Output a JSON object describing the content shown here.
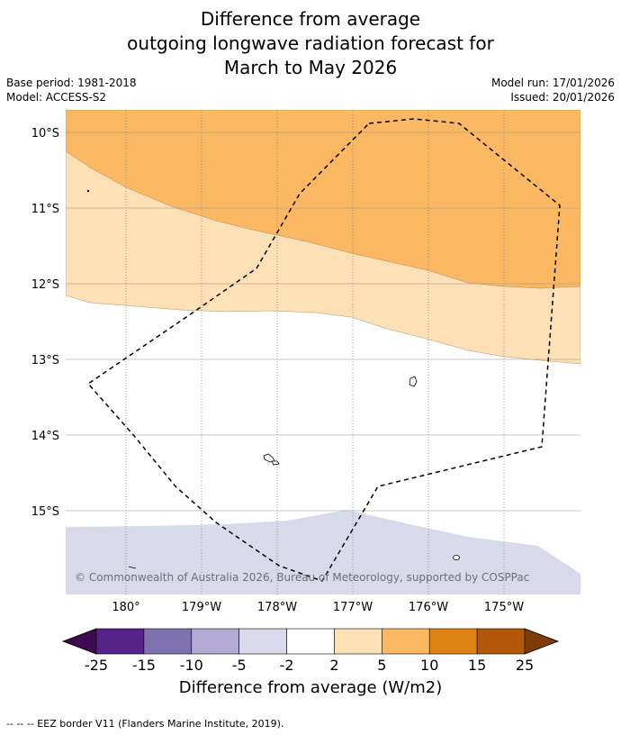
{
  "title": {
    "line1": "Difference from average",
    "line2": "outgoing longwave radiation forecast for",
    "line3": "March to May 2026"
  },
  "meta": {
    "base_period": "Base period: 1981-2018",
    "model": "Model: ACCESS-S2",
    "model_run": "Model run: 17/01/2026",
    "issued": "Issued: 20/01/2026"
  },
  "map": {
    "lat_labels": [
      "10°S",
      "11°S",
      "12°S",
      "13°S",
      "14°S",
      "15°S"
    ],
    "lon_labels": [
      "180°",
      "179°W",
      "178°W",
      "177°W",
      "176°W",
      "175°W"
    ],
    "copyright": "© Commonwealth of Australia 2026, Bureau of Meteorology, supported by COSPPac",
    "regions": [
      {
        "name": "5 to 10 W/m2",
        "color": "#fbb862"
      },
      {
        "name": "2 to 5 W/m2",
        "color": "#fde0b6"
      },
      {
        "name": "-5 to -2 W/m2",
        "color": "#d8d9ea"
      }
    ]
  },
  "colorbar": {
    "ticks": [
      "-25",
      "-15",
      "-10",
      "-5",
      "-2",
      "2",
      "5",
      "10",
      "15",
      "25"
    ],
    "colors": [
      "#55238a",
      "#8071b0",
      "#b2aad3",
      "#d8d9ea",
      "#ffffff",
      "#fde0b6",
      "#fbb862",
      "#e08214",
      "#b25808"
    ],
    "under_color": "#3f0a4f",
    "over_color": "#7f3b08",
    "label": "Difference from average (W/m2)"
  },
  "footer": "-- -- -- EEZ border V11 (Flanders Marine Institute, 2019)."
}
